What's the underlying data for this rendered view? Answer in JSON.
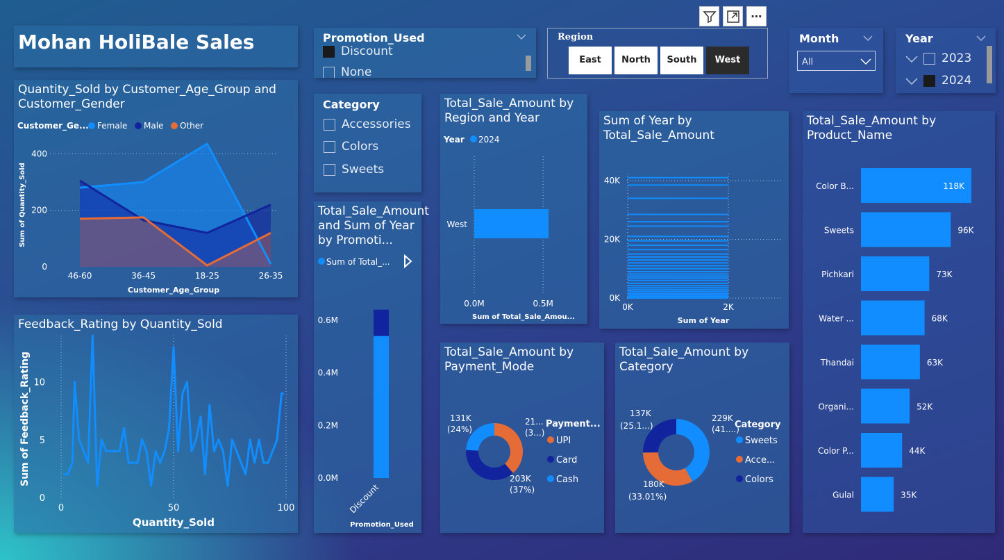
{
  "title": "Mohan HoliBale Sales",
  "visual_header": {
    "icons": [
      "filter-icon",
      "focus-mode-icon",
      "more-options-icon"
    ]
  },
  "promotion_slicer": {
    "title": "Promotion_Used",
    "items": [
      {
        "label": "Discount",
        "checked": true
      },
      {
        "label": "None",
        "checked": false
      }
    ]
  },
  "region_slicer": {
    "title": "Region",
    "buttons": [
      {
        "label": "East",
        "selected": false
      },
      {
        "label": "North",
        "selected": false
      },
      {
        "label": "South",
        "selected": false
      },
      {
        "label": "West",
        "selected": true
      }
    ]
  },
  "month_slicer": {
    "title": "Month",
    "value": "All"
  },
  "year_slicer": {
    "title": "Year",
    "items": [
      {
        "label": "2023",
        "checked": false
      },
      {
        "label": "2024",
        "checked": true
      }
    ]
  },
  "category_slicer": {
    "title": "Category",
    "items": [
      {
        "label": "Accessories"
      },
      {
        "label": "Colors"
      },
      {
        "label": "Sweets"
      }
    ]
  },
  "colors": {
    "female": "#118dff",
    "male": "#12239e",
    "other": "#e66c37",
    "bar": "#118dff",
    "dark": "#12239e"
  },
  "chart_data": [
    {
      "id": "qty_age_gender",
      "type": "area",
      "title": "Quantity_Sold by Customer_Age_Group and Customer_Gender",
      "legend_title": "Customer_Ge...",
      "xlabel": "Customer_Age_Group",
      "ylabel": "Sum of Quantity_Sold",
      "categories": [
        "46-60",
        "36-45",
        "18-25",
        "26-35"
      ],
      "yticks": [
        "0",
        "200",
        "400"
      ],
      "ylim": [
        0,
        450
      ],
      "series": [
        {
          "name": "Female",
          "values": [
            280,
            300,
            435,
            10
          ]
        },
        {
          "name": "Male",
          "values": [
            305,
            165,
            120,
            220
          ]
        },
        {
          "name": "Other",
          "values": [
            170,
            175,
            5,
            120
          ]
        }
      ]
    },
    {
      "id": "feedback_qty",
      "type": "line",
      "title": "Feedback_Rating by Quantity_Sold",
      "xlabel": "Quantity_Sold",
      "ylabel": "Sum of Feedback_Rating",
      "xticks": [
        "0",
        "50",
        "100"
      ],
      "yticks": [
        "0",
        "5",
        "10"
      ],
      "xlim": [
        0,
        100
      ],
      "ylim": [
        0,
        14
      ],
      "x": [
        1,
        3,
        5,
        6,
        8,
        10,
        12,
        14,
        16,
        18,
        20,
        22,
        24,
        26,
        28,
        30,
        32,
        34,
        36,
        38,
        40,
        42,
        44,
        46,
        48,
        50,
        52,
        54,
        56,
        58,
        60,
        62,
        64,
        66,
        68,
        70,
        72,
        74,
        76,
        78,
        80,
        82,
        84,
        86,
        88,
        90,
        92,
        94,
        96,
        98,
        99
      ],
      "y": [
        2,
        2,
        3,
        10,
        5,
        4,
        3,
        14,
        1,
        5,
        4,
        4,
        4,
        4,
        6,
        3,
        3,
        3,
        5,
        4,
        1,
        4,
        3,
        4,
        6,
        13,
        4,
        9,
        10,
        4,
        5,
        7,
        2,
        8,
        4,
        5,
        4,
        1,
        5,
        4,
        3,
        2,
        5,
        3,
        5,
        3,
        3,
        4,
        5,
        9,
        9
      ]
    },
    {
      "id": "sale_region_year",
      "type": "bar",
      "title": "Total_Sale_Amount by Region and Year",
      "legend_title": "Year",
      "series": [
        {
          "name": "2024",
          "values": [
            0.54
          ]
        }
      ],
      "categories": [
        "West"
      ],
      "xlabel": "Sum of Total_Sale_Amou...",
      "xticks": [
        "0.0M",
        "0.5M"
      ],
      "xlim": [
        0,
        0.6
      ]
    },
    {
      "id": "sale_promotion",
      "type": "bar",
      "title": "Total_Sale_Amount and Sum of Year by Promoti...",
      "legend": "Sum of Total_...",
      "categories": [
        "Discount"
      ],
      "series": [
        {
          "name": "Sum of Total_Sale_Amount",
          "values": [
            0.54
          ]
        },
        {
          "name": "Sum of Year",
          "values": [
            0.1
          ]
        }
      ],
      "xlabel": "Promotion_Used",
      "yticks": [
        "0.0M",
        "0.2M",
        "0.4M",
        "0.6M"
      ],
      "ylim": [
        0,
        0.7
      ]
    },
    {
      "id": "year_by_sale",
      "type": "bar",
      "title": "Sum of Year by Total_Sale_Amount",
      "xlabel": "Sum of Year",
      "xticks": [
        "0K",
        "2K"
      ],
      "yticks": [
        "0K",
        "20K",
        "40K"
      ],
      "ylim": [
        0,
        45000
      ],
      "values": [
        0,
        500,
        1000,
        1500,
        2200,
        2800,
        3500,
        4200,
        5000,
        6000,
        6800,
        7500,
        8200,
        9000,
        10000,
        11000,
        12000,
        13000,
        14000,
        15000,
        16500,
        18000,
        19500,
        21000,
        24500,
        26000,
        28500,
        34000,
        38500,
        41000
      ]
    },
    {
      "id": "sale_payment",
      "type": "pie",
      "title": "Total_Sale_Amount by Payment_Mode",
      "legend_title": "Payment...",
      "labels": [
        "UPI",
        "Card",
        "Cash"
      ],
      "values": [
        210,
        203,
        131
      ],
      "data_labels": [
        {
          "value": "21...",
          "pct": "(3...)"
        },
        {
          "value": "203K",
          "pct": "(37%)"
        },
        {
          "value": "131K",
          "pct": "(24%)"
        }
      ]
    },
    {
      "id": "sale_category",
      "type": "pie",
      "title": "Total_Sale_Amount by Category",
      "legend_title": "Category",
      "labels": [
        "Sweets",
        "Acce...",
        "Colors"
      ],
      "values": [
        229,
        180,
        137
      ],
      "data_labels": [
        {
          "value": "229K",
          "pct": "(41....)"
        },
        {
          "value": "180K",
          "pct": "(33.01%)"
        },
        {
          "value": "137K",
          "pct": "(25.1...)"
        }
      ]
    },
    {
      "id": "sale_product",
      "type": "bar",
      "title": "Total_Sale_Amount by Product_Name",
      "categories": [
        "Color B...",
        "Sweets",
        "Pichkari",
        "Water ...",
        "Thandai",
        "Organi...",
        "Color P...",
        "Gulal"
      ],
      "values": [
        118,
        96,
        73,
        68,
        63,
        52,
        44,
        35
      ],
      "data_labels": [
        "118K",
        "96K",
        "73K",
        "68K",
        "63K",
        "52K",
        "44K",
        "35K"
      ]
    }
  ]
}
